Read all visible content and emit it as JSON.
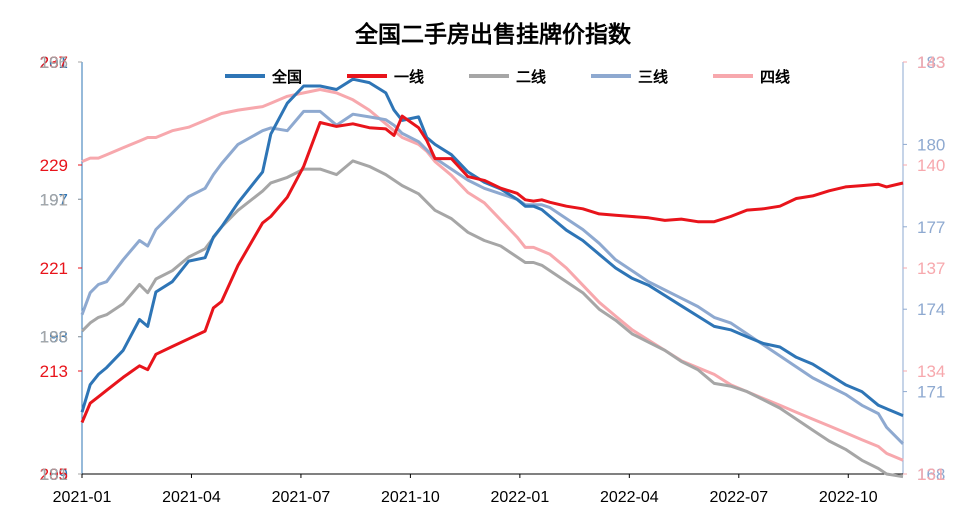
{
  "chart_data": {
    "type": "line",
    "title": "全国二手房出售挂牌价指数",
    "x_ticks": [
      "2021-01",
      "2021-04",
      "2021-07",
      "2021-10",
      "2022-01",
      "2022-04",
      "2022-07",
      "2022-10"
    ],
    "x_range": [
      0,
      100
    ],
    "axes": {
      "left_blue": {
        "color": "#2E75B6",
        "range": [
          189,
          201
        ],
        "ticks": [
          201,
          197,
          193,
          189
        ],
        "tick_labels": [
          "201",
          "197",
          "193",
          "189"
        ]
      },
      "left_red": {
        "color": "#E8141B",
        "range": [
          205,
          237
        ],
        "ticks": [
          237,
          229,
          221,
          213,
          205
        ],
        "tick_labels": [
          "237",
          "229",
          "221",
          "213",
          "205"
        ]
      },
      "left_grey": {
        "color": "#A6A6A6",
        "range": [
          181,
          196
        ],
        "ticks": [
          196,
          191,
          186,
          181
        ],
        "tick_labels": [
          "196",
          "191",
          "186",
          "181"
        ]
      },
      "right_lightblue": {
        "color": "#8EA9D0",
        "range": [
          168,
          183
        ],
        "ticks": [
          183,
          180,
          177,
          174,
          171,
          168
        ],
        "tick_labels": [
          "183",
          "180",
          "177",
          "174",
          "171",
          "168"
        ]
      },
      "right_pink": {
        "color": "#F7A8AD",
        "range": [
          131,
          143
        ],
        "ticks": [
          143,
          140,
          137,
          134,
          131
        ],
        "tick_labels": [
          "143",
          "140",
          "137",
          "134",
          "131"
        ]
      }
    },
    "series": [
      {
        "name": "全国",
        "axis": "left_blue",
        "color": "#2E75B6",
        "x": [
          0,
          1,
          2,
          3,
          5,
          7,
          8,
          9,
          11,
          13,
          15,
          16,
          17,
          19,
          22,
          23,
          25,
          27,
          29,
          31,
          33,
          35,
          37,
          38,
          39,
          41,
          42,
          43,
          45,
          47,
          49,
          51,
          53,
          54,
          55,
          56,
          57,
          59,
          61,
          63,
          65,
          67,
          69,
          71,
          73,
          75,
          77,
          79,
          81,
          83,
          85,
          87,
          89,
          91,
          93,
          95,
          97,
          98,
          100
        ],
        "y": [
          190.8,
          191.6,
          191.9,
          192.1,
          192.6,
          193.5,
          193.3,
          194.3,
          194.6,
          195.2,
          195.3,
          195.9,
          196.2,
          196.9,
          197.8,
          198.9,
          199.8,
          200.3,
          200.3,
          200.2,
          200.5,
          200.4,
          200.1,
          199.6,
          199.3,
          199.4,
          198.8,
          198.6,
          198.3,
          197.8,
          197.5,
          197.3,
          197.0,
          196.8,
          196.8,
          196.7,
          196.5,
          196.1,
          195.8,
          195.4,
          195.0,
          194.7,
          194.5,
          194.2,
          193.9,
          193.6,
          193.3,
          193.2,
          193.0,
          192.8,
          192.7,
          192.4,
          192.2,
          191.9,
          191.6,
          191.4,
          191.0,
          190.9,
          190.7
        ]
      },
      {
        "name": "一线",
        "axis": "left_red",
        "color": "#E8141B",
        "x": [
          0,
          1,
          2,
          3,
          5,
          7,
          8,
          9,
          11,
          13,
          15,
          16,
          17,
          19,
          22,
          23,
          25,
          27,
          29,
          31,
          33,
          35,
          37,
          38,
          39,
          41,
          42,
          43,
          45,
          47,
          49,
          51,
          53,
          54,
          55,
          56,
          57,
          59,
          61,
          63,
          65,
          67,
          69,
          71,
          73,
          75,
          77,
          79,
          81,
          83,
          85,
          87,
          89,
          91,
          93,
          95,
          97,
          98,
          100
        ],
        "y": [
          209.0,
          210.5,
          211.0,
          211.5,
          212.5,
          213.4,
          213.1,
          214.3,
          214.9,
          215.5,
          216.1,
          217.9,
          218.4,
          221.2,
          224.5,
          225.0,
          226.5,
          228.9,
          232.3,
          232.0,
          232.2,
          231.9,
          231.8,
          231.3,
          232.8,
          231.9,
          230.9,
          229.5,
          229.5,
          228.1,
          227.8,
          227.2,
          226.8,
          226.3,
          226.2,
          226.3,
          226.1,
          225.8,
          225.6,
          225.2,
          225.1,
          225.0,
          224.9,
          224.7,
          224.8,
          224.6,
          224.6,
          225.0,
          225.5,
          225.6,
          225.8,
          226.4,
          226.6,
          227.0,
          227.3,
          227.4,
          227.5,
          227.3,
          227.6
        ]
      },
      {
        "name": "二线",
        "axis": "left_grey",
        "color": "#A6A6A6",
        "x": [
          0,
          1,
          2,
          3,
          5,
          7,
          8,
          9,
          11,
          13,
          15,
          16,
          17,
          19,
          22,
          23,
          25,
          27,
          29,
          31,
          33,
          35,
          37,
          38,
          39,
          41,
          42,
          43,
          45,
          47,
          49,
          51,
          53,
          54,
          55,
          56,
          57,
          59,
          61,
          63,
          65,
          67,
          69,
          71,
          73,
          75,
          77,
          79,
          81,
          83,
          85,
          87,
          89,
          91,
          93,
          95,
          97,
          98,
          100
        ],
        "y": [
          186.2,
          186.5,
          186.7,
          186.8,
          187.2,
          187.9,
          187.6,
          188.1,
          188.4,
          188.9,
          189.2,
          189.6,
          190.0,
          190.6,
          191.3,
          191.6,
          191.8,
          192.1,
          192.1,
          191.9,
          192.4,
          192.2,
          191.9,
          191.7,
          191.5,
          191.2,
          190.9,
          190.6,
          190.3,
          189.8,
          189.5,
          189.3,
          188.9,
          188.7,
          188.7,
          188.6,
          188.4,
          188.0,
          187.6,
          187.0,
          186.6,
          186.1,
          185.8,
          185.5,
          185.1,
          184.8,
          184.3,
          184.2,
          184.0,
          183.7,
          183.4,
          183.0,
          182.6,
          182.2,
          181.9,
          181.5,
          181.2,
          181.0,
          180.9
        ]
      },
      {
        "name": "三线",
        "axis": "right_lightblue",
        "color": "#8EA9D0",
        "x": [
          0,
          1,
          2,
          3,
          5,
          7,
          8,
          9,
          11,
          13,
          15,
          16,
          17,
          19,
          22,
          23,
          25,
          27,
          29,
          31,
          33,
          35,
          37,
          38,
          39,
          41,
          42,
          43,
          45,
          47,
          49,
          51,
          53,
          54,
          55,
          56,
          57,
          59,
          61,
          63,
          65,
          67,
          69,
          71,
          73,
          75,
          77,
          79,
          81,
          83,
          85,
          87,
          89,
          91,
          93,
          95,
          97,
          98,
          100
        ],
        "y": [
          173.8,
          174.6,
          174.9,
          175.0,
          175.8,
          176.5,
          176.3,
          176.9,
          177.5,
          178.1,
          178.4,
          178.9,
          179.3,
          180.0,
          180.5,
          180.6,
          180.5,
          181.2,
          181.2,
          180.7,
          181.1,
          181.0,
          180.9,
          180.7,
          180.4,
          180.1,
          179.8,
          179.5,
          179.1,
          178.7,
          178.4,
          178.2,
          178.0,
          177.8,
          177.8,
          177.8,
          177.7,
          177.3,
          176.9,
          176.4,
          175.8,
          175.4,
          175.0,
          174.7,
          174.4,
          174.1,
          173.7,
          173.5,
          173.1,
          172.7,
          172.3,
          171.9,
          171.5,
          171.2,
          170.9,
          170.5,
          170.2,
          169.7,
          169.1
        ]
      },
      {
        "name": "四线",
        "axis": "right_pink",
        "color": "#F7A8AD",
        "x": [
          0,
          1,
          2,
          3,
          5,
          7,
          8,
          9,
          11,
          13,
          15,
          16,
          17,
          19,
          22,
          23,
          25,
          27,
          29,
          31,
          33,
          35,
          37,
          38,
          39,
          41,
          42,
          43,
          45,
          47,
          49,
          51,
          53,
          54,
          55,
          56,
          57,
          59,
          61,
          63,
          65,
          67,
          69,
          71,
          73,
          75,
          77,
          79,
          81,
          83,
          85,
          87,
          89,
          91,
          93,
          95,
          97,
          98,
          100
        ],
        "y": [
          140.1,
          140.2,
          140.2,
          140.3,
          140.5,
          140.7,
          140.8,
          140.8,
          141.0,
          141.1,
          141.3,
          141.4,
          141.5,
          141.6,
          141.7,
          141.8,
          142.0,
          142.1,
          142.2,
          142.1,
          141.9,
          141.6,
          141.2,
          141.0,
          140.8,
          140.6,
          140.4,
          140.1,
          139.7,
          139.2,
          138.9,
          138.4,
          137.9,
          137.6,
          137.6,
          137.5,
          137.4,
          137.0,
          136.5,
          136.0,
          135.6,
          135.2,
          134.9,
          134.6,
          134.3,
          134.1,
          133.9,
          133.6,
          133.4,
          133.2,
          133.0,
          132.8,
          132.6,
          132.4,
          132.2,
          132.0,
          131.8,
          131.6,
          131.4
        ]
      }
    ]
  }
}
